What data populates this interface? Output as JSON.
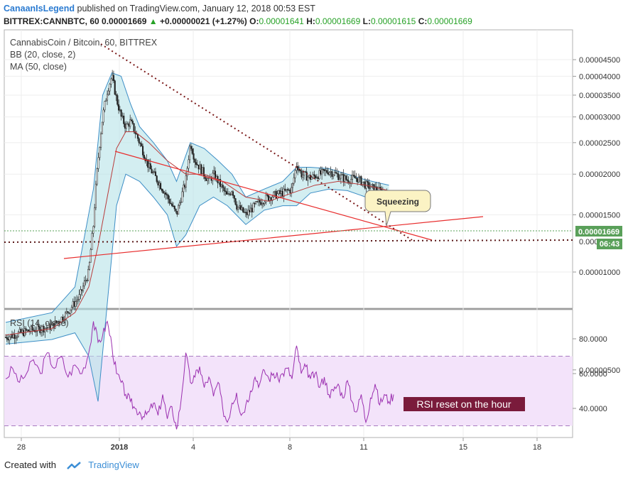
{
  "header": {
    "author": "CanaanIsLegend",
    "published": "published on TradingView.com, January 12, 2018 00:53 EST",
    "symbol": "BITTREX:CANNBTC, 60",
    "price": "0.00001669",
    "arrow": "▲",
    "change": "+0.00000021 (+1.27%)",
    "o_label": "O:",
    "o": "0.00001641",
    "h_label": "H:",
    "h": "0.00001669",
    "l_label": "L:",
    "l": "0.00001615",
    "c_label": "C:",
    "c": "0.00001669"
  },
  "legend": {
    "title": "CannabisCoin / Bitcoin, 60, BITTREX",
    "bb": "BB (20, close, 2)",
    "ma": "MA (50, close)",
    "rsi": "RSI (14, close)"
  },
  "annotations": {
    "squeezing": "Squeezing",
    "rsi_note": "RSI reset on the hour",
    "price_tag": "0.00001669",
    "time_tag": "06:43",
    "partial_label": "0.000"
  },
  "footer": {
    "created": "Created with",
    "brand": "TradingView"
  },
  "colors": {
    "bb_fill": "#b5e3e8",
    "bb_line": "#3d8ec6",
    "ma_line": "#b83b3b",
    "rsi_line": "#9b30b0",
    "rsi_band": "#f3e3fa",
    "trend_red": "#e82d2d",
    "trend_dotted": "#7a1818",
    "price_green": "#5aa05a",
    "rsi_note_bg": "#7a1b3b"
  },
  "chart_data": [
    {
      "type": "candlestick",
      "title": "CannabisCoin / Bitcoin, 60, BITTREX",
      "y_ticks": [
        "0.00000500",
        "0.00001000",
        "0.00001500",
        "0.00002000",
        "0.00002500",
        "0.00003000",
        "0.00003500",
        "0.00004000",
        "0.00004500"
      ],
      "x_ticks": [
        "28",
        "2018",
        "4",
        "8",
        "11",
        "15",
        "18"
      ],
      "ylim": [
        4e-06,
        4.8e-06
      ],
      "grid": true,
      "price_path": [
        [
          0,
          6.3e-06
        ],
        [
          10,
          6.6e-06
        ],
        [
          20,
          6.8e-06
        ],
        [
          26,
          7.4e-06
        ],
        [
          32,
          8.4e-06
        ],
        [
          36,
          1e-05
        ],
        [
          38,
          1.4e-05
        ],
        [
          40,
          2.2e-05
        ],
        [
          42,
          3e-05
        ],
        [
          44,
          3.6e-05
        ],
        [
          46,
          4e-05
        ],
        [
          48,
          3.4e-05
        ],
        [
          50,
          3e-05
        ],
        [
          52,
          2.8e-05
        ],
        [
          54,
          2.9e-05
        ],
        [
          56,
          2.7e-05
        ],
        [
          58,
          2.5e-05
        ],
        [
          60,
          2.3e-05
        ],
        [
          62,
          2.1e-05
        ],
        [
          64,
          2e-05
        ],
        [
          66,
          1.9e-05
        ],
        [
          68,
          1.8e-05
        ],
        [
          70,
          1.7e-05
        ],
        [
          72,
          1.6e-05
        ],
        [
          74,
          1.5e-05
        ],
        [
          76,
          1.7e-05
        ],
        [
          78,
          1.9e-05
        ],
        [
          80,
          2.5e-05
        ],
        [
          82,
          2.2e-05
        ],
        [
          84,
          2.1e-05
        ],
        [
          86,
          2e-05
        ],
        [
          88,
          1.9e-05
        ],
        [
          90,
          2e-05
        ],
        [
          92,
          1.9e-05
        ],
        [
          94,
          1.8e-05
        ],
        [
          96,
          1.7e-05
        ],
        [
          98,
          1.8e-05
        ],
        [
          100,
          1.6e-05
        ],
        [
          104,
          1.5e-05
        ],
        [
          108,
          1.6e-05
        ],
        [
          112,
          1.68e-05
        ],
        [
          116,
          1.72e-05
        ],
        [
          120,
          1.75e-05
        ],
        [
          124,
          1.8e-05
        ],
        [
          126,
          2.15e-05
        ],
        [
          128,
          2e-05
        ],
        [
          132,
          1.95e-05
        ],
        [
          136,
          2e-05
        ],
        [
          140,
          2.05e-05
        ],
        [
          144,
          1.98e-05
        ],
        [
          148,
          1.92e-05
        ],
        [
          152,
          1.95e-05
        ],
        [
          156,
          1.85e-05
        ],
        [
          160,
          1.8e-05
        ],
        [
          164,
          1.75e-05
        ],
        [
          166,
          1.669e-05
        ]
      ],
      "bb_upper": [
        [
          0,
          7e-06
        ],
        [
          20,
          7.5e-06
        ],
        [
          30,
          9e-06
        ],
        [
          38,
          1.8e-05
        ],
        [
          42,
          3.5e-05
        ],
        [
          46,
          4.1e-05
        ],
        [
          50,
          4e-05
        ],
        [
          54,
          3.3e-05
        ],
        [
          58,
          2.8e-05
        ],
        [
          64,
          2.5e-05
        ],
        [
          70,
          2.2e-05
        ],
        [
          74,
          1.9e-05
        ],
        [
          80,
          2.5e-05
        ],
        [
          86,
          2.4e-05
        ],
        [
          92,
          2.2e-05
        ],
        [
          98,
          2e-05
        ],
        [
          104,
          1.7e-05
        ],
        [
          112,
          1.8e-05
        ],
        [
          120,
          1.9e-05
        ],
        [
          126,
          2.1e-05
        ],
        [
          132,
          2.1e-05
        ],
        [
          140,
          2.08e-05
        ],
        [
          148,
          2e-05
        ],
        [
          156,
          1.92e-05
        ],
        [
          166,
          1.85e-05
        ]
      ],
      "bb_lower": [
        [
          0,
          6e-06
        ],
        [
          20,
          6.2e-06
        ],
        [
          30,
          6.5e-06
        ],
        [
          36,
          5.5e-06
        ],
        [
          40,
          4e-06
        ],
        [
          44,
          8e-06
        ],
        [
          48,
          1.6e-05
        ],
        [
          52,
          2e-05
        ],
        [
          58,
          1.9e-05
        ],
        [
          64,
          1.7e-05
        ],
        [
          70,
          1.5e-05
        ],
        [
          74,
          1.2e-05
        ],
        [
          78,
          1.3e-05
        ],
        [
          84,
          1.6e-05
        ],
        [
          90,
          1.7e-05
        ],
        [
          96,
          1.6e-05
        ],
        [
          104,
          1.4e-05
        ],
        [
          112,
          1.55e-05
        ],
        [
          120,
          1.6e-05
        ],
        [
          126,
          1.6e-05
        ],
        [
          132,
          1.75e-05
        ],
        [
          140,
          1.8e-05
        ],
        [
          148,
          1.78e-05
        ],
        [
          156,
          1.7e-05
        ],
        [
          166,
          1.6e-05
        ]
      ],
      "ma": [
        [
          0,
          6.4e-06
        ],
        [
          20,
          6.7e-06
        ],
        [
          30,
          7.5e-06
        ],
        [
          36,
          9e-06
        ],
        [
          40,
          1.2e-05
        ],
        [
          44,
          1.7e-05
        ],
        [
          48,
          2.4e-05
        ],
        [
          52,
          2.7e-05
        ],
        [
          56,
          2.7e-05
        ],
        [
          62,
          2.5e-05
        ],
        [
          70,
          2.2e-05
        ],
        [
          78,
          2e-05
        ],
        [
          86,
          2e-05
        ],
        [
          94,
          1.9e-05
        ],
        [
          104,
          1.7e-05
        ],
        [
          114,
          1.65e-05
        ],
        [
          124,
          1.75e-05
        ],
        [
          134,
          1.85e-05
        ],
        [
          144,
          1.9e-05
        ],
        [
          156,
          1.85e-05
        ],
        [
          166,
          1.78e-05
        ]
      ]
    },
    {
      "type": "line",
      "title": "RSI (14, close)",
      "y_ticks": [
        "40.0000",
        "60.0000",
        "80.0000"
      ],
      "ylim": [
        25,
        95
      ],
      "bands": [
        30,
        70
      ],
      "series": [
        {
          "name": "RSI (14, close)",
          "values": [
            [
              0,
              57
            ],
            [
              3,
              63
            ],
            [
              6,
              55
            ],
            [
              9,
              60
            ],
            [
              12,
              68
            ],
            [
              15,
              60
            ],
            [
              18,
              72
            ],
            [
              21,
              63
            ],
            [
              24,
              70
            ],
            [
              27,
              58
            ],
            [
              30,
              65
            ],
            [
              33,
              60
            ],
            [
              36,
              72
            ],
            [
              38,
              90
            ],
            [
              40,
              78
            ],
            [
              42,
              82
            ],
            [
              44,
              90
            ],
            [
              46,
              76
            ],
            [
              48,
              60
            ],
            [
              50,
              55
            ],
            [
              52,
              48
            ],
            [
              54,
              44
            ],
            [
              56,
              40
            ],
            [
              58,
              38
            ],
            [
              60,
              35
            ],
            [
              62,
              38
            ],
            [
              64,
              43
            ],
            [
              66,
              36
            ],
            [
              68,
              48
            ],
            [
              70,
              34
            ],
            [
              72,
              41
            ],
            [
              74,
              28
            ],
            [
              76,
              45
            ],
            [
              78,
              72
            ],
            [
              80,
              55
            ],
            [
              82,
              58
            ],
            [
              84,
              64
            ],
            [
              86,
              52
            ],
            [
              88,
              58
            ],
            [
              90,
              47
            ],
            [
              92,
              55
            ],
            [
              94,
              40
            ],
            [
              96,
              32
            ],
            [
              98,
              43
            ],
            [
              100,
              49
            ],
            [
              102,
              36
            ],
            [
              104,
              42
            ],
            [
              106,
              50
            ],
            [
              108,
              58
            ],
            [
              110,
              54
            ],
            [
              112,
              62
            ],
            [
              114,
              57
            ],
            [
              116,
              60
            ],
            [
              118,
              57
            ],
            [
              120,
              60
            ],
            [
              122,
              63
            ],
            [
              124,
              57
            ],
            [
              126,
              76
            ],
            [
              128,
              60
            ],
            [
              130,
              64
            ],
            [
              132,
              57
            ],
            [
              134,
              60
            ],
            [
              136,
              52
            ],
            [
              138,
              58
            ],
            [
              140,
              48
            ],
            [
              142,
              50
            ],
            [
              144,
              54
            ],
            [
              146,
              46
            ],
            [
              148,
              56
            ],
            [
              150,
              44
            ],
            [
              152,
              38
            ],
            [
              154,
              48
            ],
            [
              156,
              32
            ],
            [
              158,
              46
            ],
            [
              160,
              54
            ],
            [
              162,
              42
            ],
            [
              164,
              48
            ],
            [
              166,
              44
            ],
            [
              168,
              48
            ]
          ]
        }
      ]
    }
  ]
}
